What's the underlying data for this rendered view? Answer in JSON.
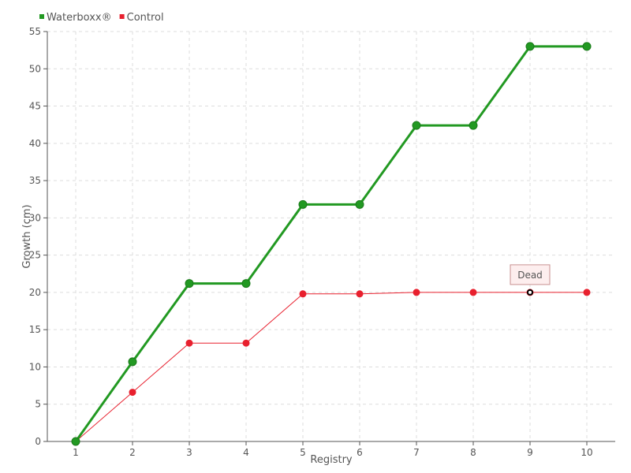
{
  "chart_data": {
    "type": "line",
    "title": "",
    "xlabel": "Registry",
    "ylabel": "Growth (cm)",
    "categories": [
      "1",
      "2",
      "3",
      "4",
      "5",
      "6",
      "7",
      "8",
      "9",
      "10"
    ],
    "xlim": [
      0.5,
      10.5
    ],
    "ylim": [
      0,
      55
    ],
    "yticks": [
      0,
      5,
      10,
      15,
      20,
      25,
      30,
      35,
      40,
      45,
      50,
      55
    ],
    "grid": true,
    "legend_position": "top-left",
    "series": [
      {
        "name": "Waterboxx®",
        "color": "#229922",
        "values": [
          0,
          10.7,
          21.2,
          21.2,
          31.8,
          31.8,
          42.4,
          42.4,
          53,
          53
        ]
      },
      {
        "name": "Control",
        "color": "#e8202e",
        "values": [
          0,
          6.6,
          13.2,
          13.2,
          19.8,
          19.8,
          20,
          20,
          20,
          20
        ]
      }
    ],
    "annotations": [
      {
        "text": "Dead",
        "series": "Control",
        "x": 9,
        "y": 20
      }
    ]
  }
}
